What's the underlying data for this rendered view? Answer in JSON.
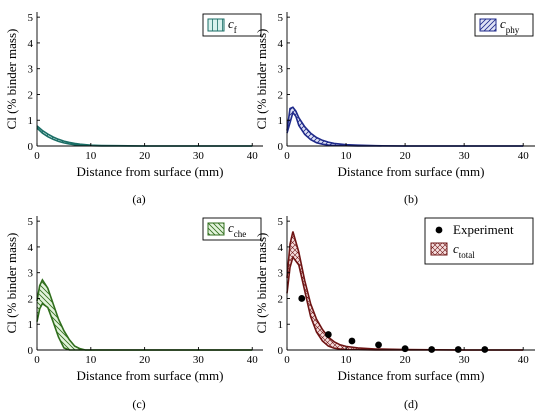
{
  "colors": {
    "cf": "#1b6e66",
    "cphy": "#1f2a8a",
    "cche": "#2f6e1c",
    "ctotal": "#6e1414",
    "experiment": "#000000"
  },
  "chart_data": [
    {
      "id": "a",
      "type": "area",
      "caption": "(a)",
      "xlabel": "Distance from surface (mm)",
      "ylabel": "Cl (% binder mass)",
      "xlim": [
        0,
        42
      ],
      "ylim": [
        0,
        5.2
      ],
      "xticks": [
        0,
        10,
        20,
        30,
        40
      ],
      "yticks": [
        0,
        1,
        2,
        3,
        4,
        5
      ],
      "legend_position": "top-right",
      "series": [
        {
          "name": "c",
          "subscript": "f",
          "color_key": "cf",
          "fill": "#d9f2ee",
          "hatch": "vertical",
          "x": [
            0,
            1,
            2,
            3,
            4,
            5,
            6,
            7,
            8,
            9,
            10,
            12,
            15,
            20,
            30,
            40
          ],
          "upper": [
            0.78,
            0.6,
            0.46,
            0.35,
            0.26,
            0.19,
            0.14,
            0.1,
            0.07,
            0.05,
            0.03,
            0.02,
            0.01,
            0.0,
            0.0,
            0.0
          ],
          "lower": [
            0.7,
            0.5,
            0.36,
            0.26,
            0.18,
            0.12,
            0.08,
            0.05,
            0.03,
            0.02,
            0.01,
            0.0,
            0.0,
            0.0,
            0.0,
            0.0
          ]
        }
      ]
    },
    {
      "id": "b",
      "type": "area",
      "caption": "(b)",
      "xlabel": "Distance from surface (mm)",
      "ylabel": "Cl (% binder mass)",
      "xlim": [
        0,
        42
      ],
      "ylim": [
        0,
        5.2
      ],
      "xticks": [
        0,
        10,
        20,
        30,
        40
      ],
      "yticks": [
        0,
        1,
        2,
        3,
        4,
        5
      ],
      "legend_position": "top-right",
      "series": [
        {
          "name": "c",
          "subscript": "phy",
          "color_key": "cphy",
          "fill": "#dfe2f5",
          "hatch": "diagonal",
          "x": [
            0,
            0.5,
            1,
            1.5,
            2,
            3,
            4,
            5,
            6,
            7,
            8,
            10,
            12,
            15,
            20,
            30,
            40
          ],
          "upper": [
            0.6,
            1.45,
            1.5,
            1.35,
            1.1,
            0.75,
            0.5,
            0.33,
            0.22,
            0.15,
            0.1,
            0.05,
            0.03,
            0.01,
            0.0,
            0.0,
            0.0
          ],
          "lower": [
            0.5,
            0.9,
            1.3,
            1.15,
            0.8,
            0.45,
            0.25,
            0.13,
            0.07,
            0.04,
            0.02,
            0.01,
            0.0,
            0.0,
            0.0,
            0.0,
            0.0
          ]
        }
      ]
    },
    {
      "id": "c",
      "type": "area",
      "caption": "(c)",
      "xlabel": "Distance from surface (mm)",
      "ylabel": "Cl (% binder mass)",
      "xlim": [
        0,
        42
      ],
      "ylim": [
        0,
        5.2
      ],
      "xticks": [
        0,
        10,
        20,
        30,
        40
      ],
      "yticks": [
        0,
        1,
        2,
        3,
        4,
        5
      ],
      "legend_position": "top-right",
      "series": [
        {
          "name": "c",
          "subscript": "che",
          "color_key": "cche",
          "fill": "#e3f3dc",
          "hatch": "diagonal-back",
          "x": [
            0,
            0.5,
            1,
            2,
            3,
            4,
            5,
            6,
            7,
            8,
            9,
            10,
            20,
            30,
            40
          ],
          "upper": [
            1.9,
            2.5,
            2.72,
            2.4,
            1.8,
            1.2,
            0.75,
            0.4,
            0.15,
            0.05,
            0.0,
            0.0,
            0.0,
            0.0,
            0.0
          ],
          "lower": [
            1.1,
            1.6,
            1.8,
            1.65,
            1.1,
            0.5,
            0.08,
            0.0,
            0.0,
            0.0,
            0.0,
            0.0,
            0.0,
            0.0,
            0.0
          ]
        }
      ]
    },
    {
      "id": "d",
      "type": "area",
      "caption": "(d)",
      "xlabel": "Distance from surface (mm)",
      "ylabel": "Cl (% binder mass)",
      "xlim": [
        0,
        42
      ],
      "ylim": [
        0,
        5.2
      ],
      "xticks": [
        0,
        10,
        20,
        30,
        40
      ],
      "yticks": [
        0,
        1,
        2,
        3,
        4,
        5
      ],
      "legend_position": "top-right",
      "series": [
        {
          "name": "c",
          "subscript": "total",
          "color_key": "ctotal",
          "fill": "#f6dede",
          "hatch": "cross",
          "x": [
            0,
            0.5,
            1,
            2,
            3,
            4,
            5,
            6,
            7,
            8,
            9,
            10,
            12,
            15,
            20,
            30,
            40
          ],
          "upper": [
            2.8,
            4.1,
            4.6,
            3.8,
            2.7,
            1.8,
            1.2,
            0.8,
            0.5,
            0.32,
            0.2,
            0.14,
            0.08,
            0.04,
            0.02,
            0.0,
            0.0
          ],
          "lower": [
            2.2,
            3.2,
            3.6,
            3.3,
            2.3,
            1.3,
            0.7,
            0.35,
            0.15,
            0.07,
            0.04,
            0.02,
            0.01,
            0.0,
            0.0,
            0.0,
            0.0
          ]
        }
      ],
      "points": {
        "name": "Experiment",
        "color_key": "experiment",
        "x": [
          2.5,
          7,
          11,
          15.5,
          20,
          24.5,
          29,
          33.5
        ],
        "y": [
          2.0,
          0.6,
          0.35,
          0.2,
          0.05,
          0.02,
          0.02,
          0.02
        ]
      }
    }
  ]
}
